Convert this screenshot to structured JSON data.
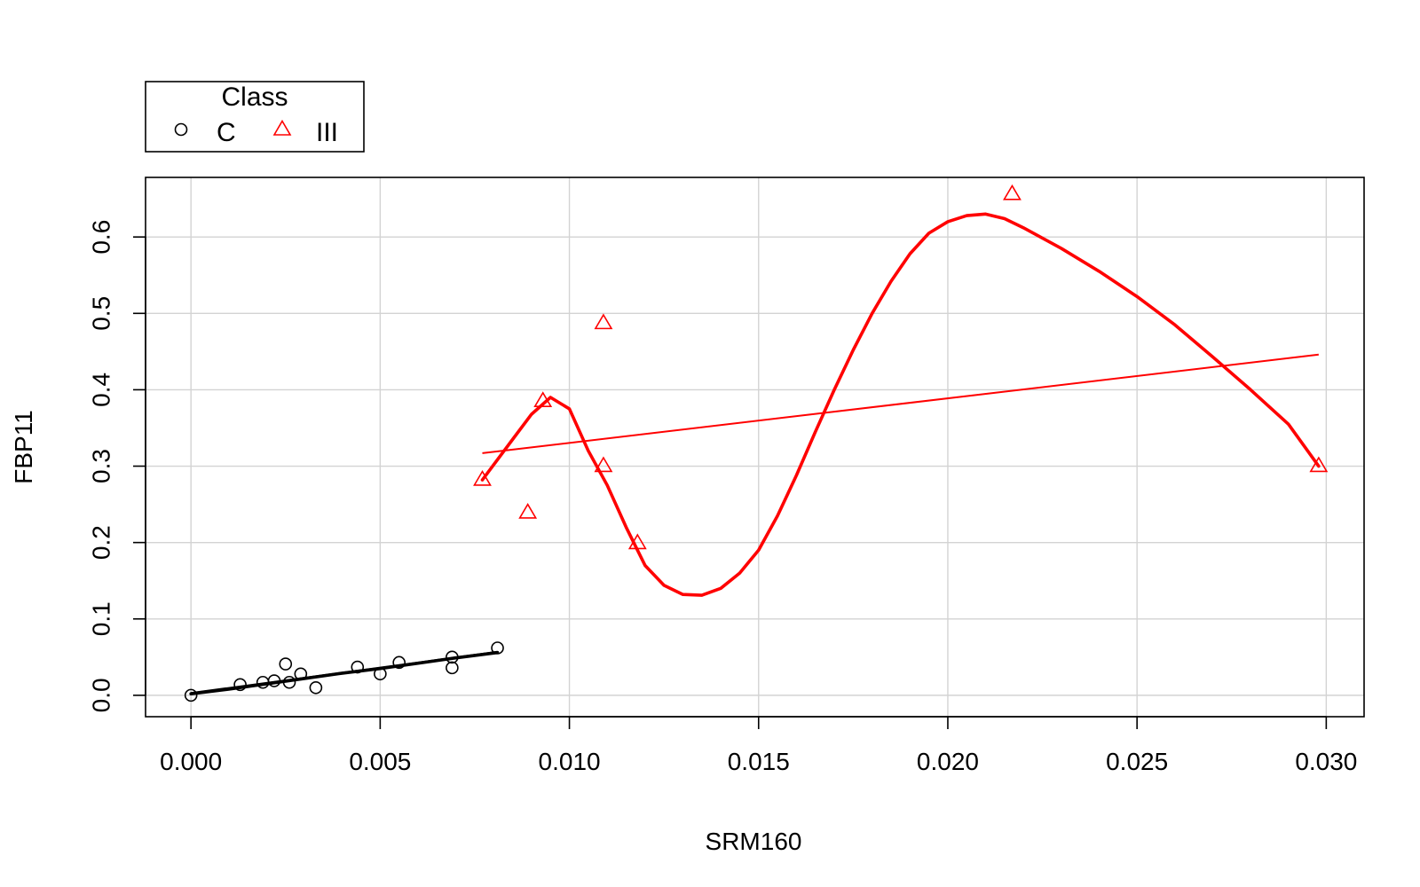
{
  "chart_data": {
    "type": "scatter",
    "title": "",
    "xlabel": "SRM160",
    "ylabel": "FBP11",
    "xlim": [
      -0.0012,
      0.031
    ],
    "ylim": [
      -0.028,
      0.678
    ],
    "x_ticks": [
      0.0,
      0.005,
      0.01,
      0.015,
      0.02,
      0.025,
      0.03
    ],
    "x_tick_labels": [
      "0.000",
      "0.005",
      "0.010",
      "0.015",
      "0.020",
      "0.025",
      "0.030"
    ],
    "y_ticks": [
      0.0,
      0.1,
      0.2,
      0.3,
      0.4,
      0.5,
      0.6
    ],
    "y_tick_labels": [
      "0.0",
      "0.1",
      "0.2",
      "0.3",
      "0.4",
      "0.5",
      "0.6"
    ],
    "grid": true,
    "legend": {
      "title": "Class",
      "position": "top-left, outside plot area",
      "entries": [
        {
          "label": "C",
          "marker": "circle",
          "color": "#000000"
        },
        {
          "label": "III",
          "marker": "triangle",
          "color": "#ff0000"
        }
      ]
    },
    "series": [
      {
        "name": "C",
        "marker": "circle",
        "color": "#000000",
        "points": [
          [
            0.0,
            0.0
          ],
          [
            0.0013,
            0.014
          ],
          [
            0.0019,
            0.017
          ],
          [
            0.0022,
            0.019
          ],
          [
            0.0025,
            0.041
          ],
          [
            0.0026,
            0.017
          ],
          [
            0.0029,
            0.028
          ],
          [
            0.0033,
            0.01
          ],
          [
            0.0044,
            0.037
          ],
          [
            0.005,
            0.028
          ],
          [
            0.0055,
            0.043
          ],
          [
            0.0069,
            0.05
          ],
          [
            0.0069,
            0.036
          ],
          [
            0.0081,
            0.062
          ]
        ],
        "regression_line": [
          [
            0.0,
            0.003
          ],
          [
            0.0081,
            0.057
          ]
        ],
        "smooth_curve": [
          [
            0.0,
            0.002
          ],
          [
            0.001,
            0.008
          ],
          [
            0.002,
            0.015
          ],
          [
            0.003,
            0.022
          ],
          [
            0.004,
            0.029
          ],
          [
            0.005,
            0.035
          ],
          [
            0.006,
            0.042
          ],
          [
            0.007,
            0.049
          ],
          [
            0.0081,
            0.056
          ]
        ]
      },
      {
        "name": "III",
        "marker": "triangle",
        "color": "#ff0000",
        "points": [
          [
            0.0077,
            0.282
          ],
          [
            0.0089,
            0.239
          ],
          [
            0.0093,
            0.385
          ],
          [
            0.0109,
            0.487
          ],
          [
            0.0109,
            0.3
          ],
          [
            0.0118,
            0.199
          ],
          [
            0.0217,
            0.656
          ],
          [
            0.0298,
            0.3
          ]
        ],
        "regression_line": [
          [
            0.0077,
            0.317
          ],
          [
            0.0298,
            0.446
          ]
        ],
        "smooth_curve": [
          [
            0.0077,
            0.282
          ],
          [
            0.0085,
            0.335
          ],
          [
            0.009,
            0.368
          ],
          [
            0.0095,
            0.39
          ],
          [
            0.01,
            0.375
          ],
          [
            0.0105,
            0.32
          ],
          [
            0.011,
            0.275
          ],
          [
            0.0115,
            0.22
          ],
          [
            0.012,
            0.17
          ],
          [
            0.0125,
            0.144
          ],
          [
            0.013,
            0.132
          ],
          [
            0.0135,
            0.131
          ],
          [
            0.014,
            0.14
          ],
          [
            0.0145,
            0.16
          ],
          [
            0.015,
            0.19
          ],
          [
            0.0155,
            0.235
          ],
          [
            0.016,
            0.288
          ],
          [
            0.0165,
            0.345
          ],
          [
            0.017,
            0.4
          ],
          [
            0.0175,
            0.452
          ],
          [
            0.018,
            0.5
          ],
          [
            0.0185,
            0.542
          ],
          [
            0.019,
            0.578
          ],
          [
            0.0195,
            0.605
          ],
          [
            0.02,
            0.62
          ],
          [
            0.0205,
            0.628
          ],
          [
            0.021,
            0.63
          ],
          [
            0.0215,
            0.624
          ],
          [
            0.022,
            0.612
          ],
          [
            0.023,
            0.585
          ],
          [
            0.024,
            0.555
          ],
          [
            0.025,
            0.522
          ],
          [
            0.026,
            0.485
          ],
          [
            0.027,
            0.443
          ],
          [
            0.028,
            0.4
          ],
          [
            0.029,
            0.355
          ],
          [
            0.0298,
            0.3
          ]
        ]
      }
    ]
  }
}
